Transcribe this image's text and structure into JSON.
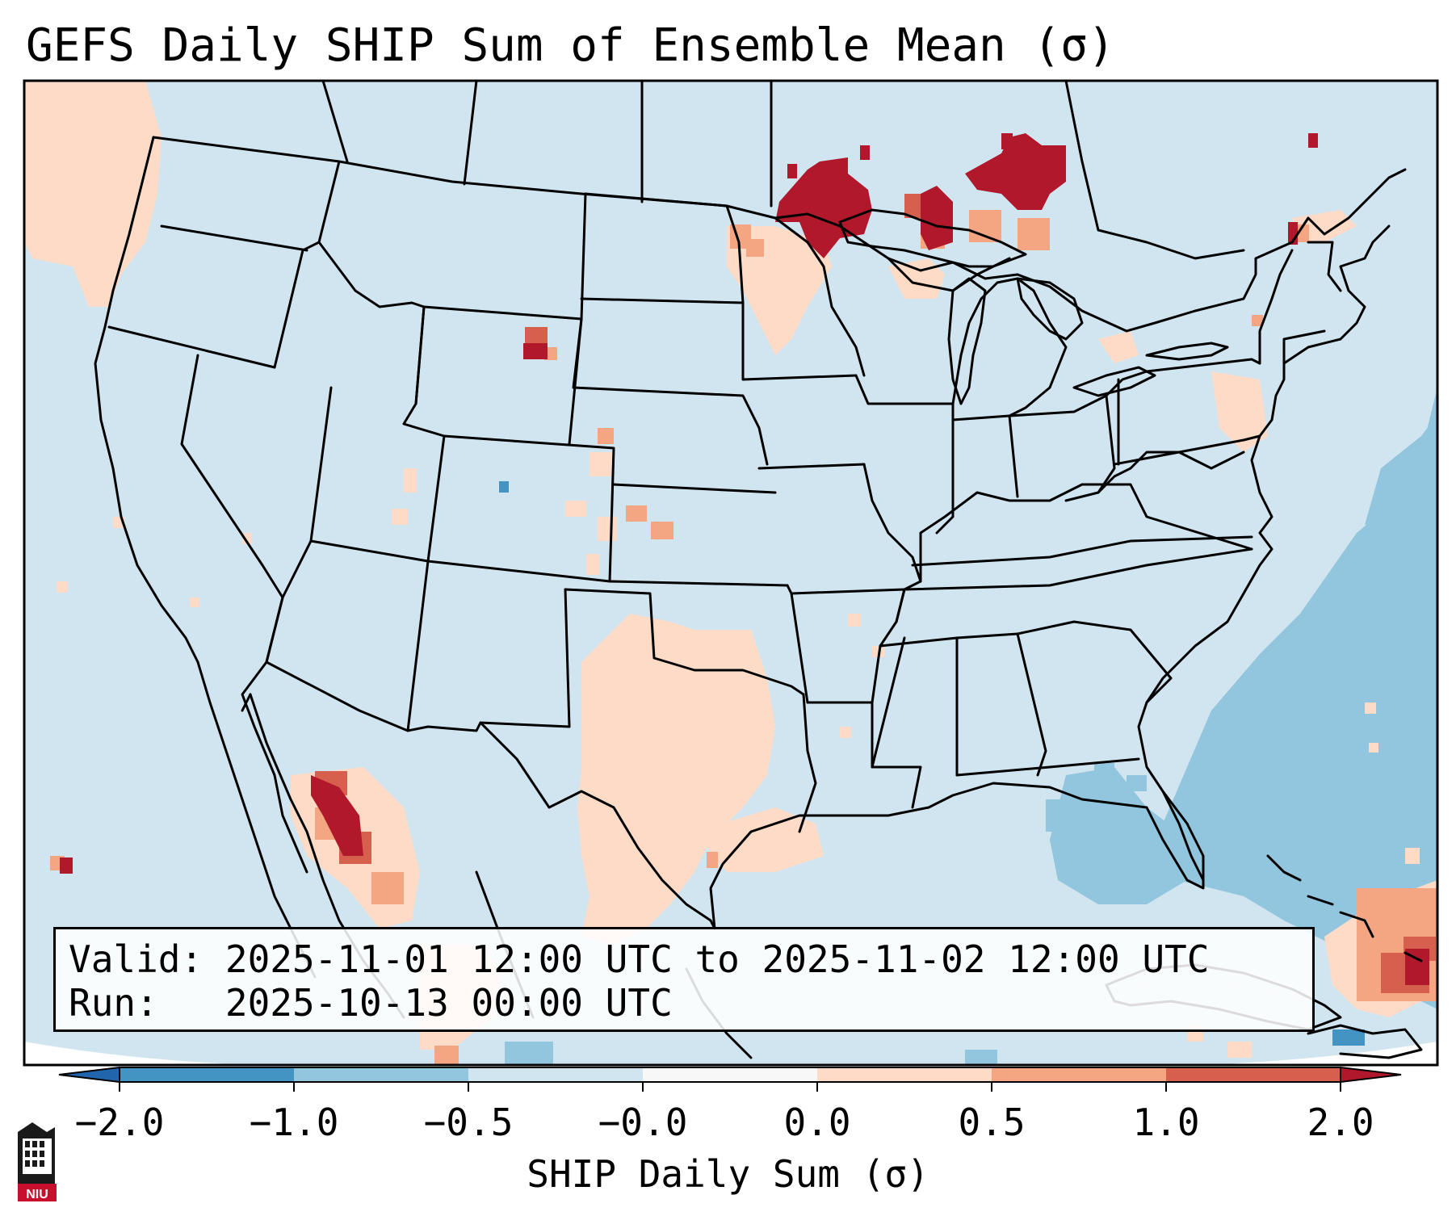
{
  "title": "GEFS Daily SHIP Sum of Ensemble Mean (σ)",
  "info": {
    "valid_label": "Valid:",
    "valid_value": "2025-11-01 12:00 UTC to 2025-11-02 12:00 UTC",
    "run_label": "Run:",
    "run_value": "2025-10-13 00:00 UTC"
  },
  "colorbar": {
    "title": "SHIP Daily Sum (σ)",
    "ticks": [
      "−2.0",
      "−1.0",
      "−0.5",
      "−0.0",
      "0.0",
      "0.5",
      "1.0",
      "2.0"
    ],
    "colors": [
      "#4393c3",
      "#92c5de",
      "#d1e5f0",
      "#f7f7f7",
      "#fddbc7",
      "#f4a582",
      "#d6604d"
    ],
    "under_color": "#2166ac",
    "over_color": "#b2182b"
  },
  "map": {
    "projection": "Lambert conformal",
    "region": "Contiguous United States",
    "background_color": "#d1e5f0",
    "field_colors": {
      "light_blue": "#d1e5f0",
      "mid_blue": "#92c5de",
      "blue": "#4393c3",
      "light_red": "#fddbc7",
      "mid_red": "#f4a582",
      "red": "#d6604d",
      "dark_red": "#b2182b"
    }
  },
  "logo": {
    "text": "NIU"
  }
}
